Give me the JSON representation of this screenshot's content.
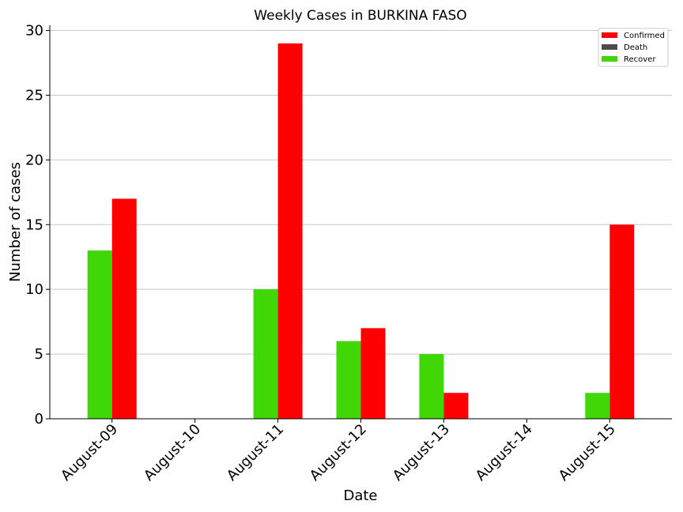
{
  "chart_data": {
    "type": "bar",
    "title": "Weekly Cases in BURKINA FASO",
    "xlabel": "Date",
    "ylabel": "Number of cases",
    "categories": [
      "August-09",
      "August-10",
      "August-11",
      "August-12",
      "August-13",
      "August-14",
      "August-15"
    ],
    "series": [
      {
        "name": "Recover",
        "color": "#3fd806",
        "values": [
          13,
          0,
          10,
          6,
          5,
          0,
          2
        ]
      },
      {
        "name": "Confirmed",
        "color": "#ff0000",
        "values": [
          17,
          0,
          29,
          7,
          2,
          0,
          15
        ]
      },
      {
        "name": "Death",
        "color": "#4d4d4d",
        "values": [
          0,
          0,
          0,
          0,
          0,
          0,
          0
        ]
      }
    ],
    "legend_order": [
      "Confirmed",
      "Death",
      "Recover"
    ],
    "legend_position": "top-right",
    "ylim": [
      0,
      30.4
    ],
    "yticks": [
      0,
      5,
      10,
      15,
      20,
      25,
      30
    ],
    "grid": "horizontal",
    "gridColor": "#c8c8c8"
  }
}
